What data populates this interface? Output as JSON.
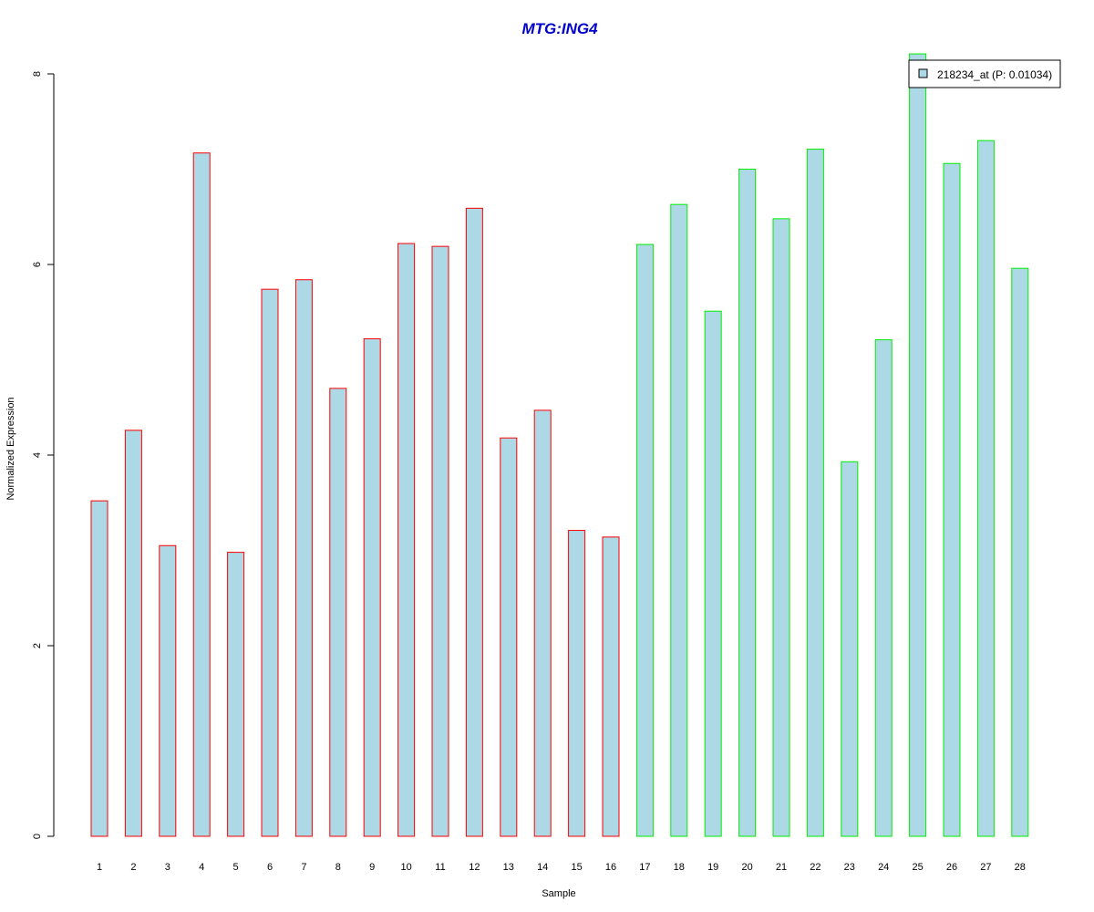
{
  "chart_data": {
    "type": "bar",
    "title": "MTG:ING4",
    "xlabel": "Sample",
    "ylabel": "Normalized Expression",
    "ylim": [
      0,
      8
    ],
    "yticks": [
      0,
      2,
      4,
      6,
      8
    ],
    "grid": false,
    "legend_position": "top-right",
    "categories": [
      "1",
      "2",
      "3",
      "4",
      "5",
      "6",
      "7",
      "8",
      "9",
      "10",
      "11",
      "12",
      "13",
      "14",
      "15",
      "16",
      "17",
      "18",
      "19",
      "20",
      "21",
      "22",
      "23",
      "24",
      "25",
      "26",
      "27",
      "28"
    ],
    "series": [
      {
        "name": "218234_at (P: 0.01034)",
        "values": [
          3.52,
          4.26,
          3.05,
          7.17,
          2.98,
          5.74,
          5.84,
          4.7,
          5.22,
          6.22,
          6.19,
          6.59,
          4.18,
          4.47,
          3.21,
          3.14,
          6.21,
          6.63,
          5.51,
          7.0,
          6.48,
          7.21,
          3.93,
          5.21,
          8.21,
          7.06,
          7.3,
          5.96
        ],
        "groups": [
          "red",
          "red",
          "red",
          "red",
          "red",
          "red",
          "red",
          "red",
          "red",
          "red",
          "red",
          "red",
          "red",
          "red",
          "red",
          "red",
          "green",
          "green",
          "green",
          "green",
          "green",
          "green",
          "green",
          "green",
          "green",
          "green",
          "green",
          "green"
        ]
      }
    ],
    "colors": {
      "bar_fill": "#add8e6",
      "red": "#ff0000",
      "green": "#00ee00",
      "title": "#0000cd",
      "axis": "#000000"
    }
  }
}
